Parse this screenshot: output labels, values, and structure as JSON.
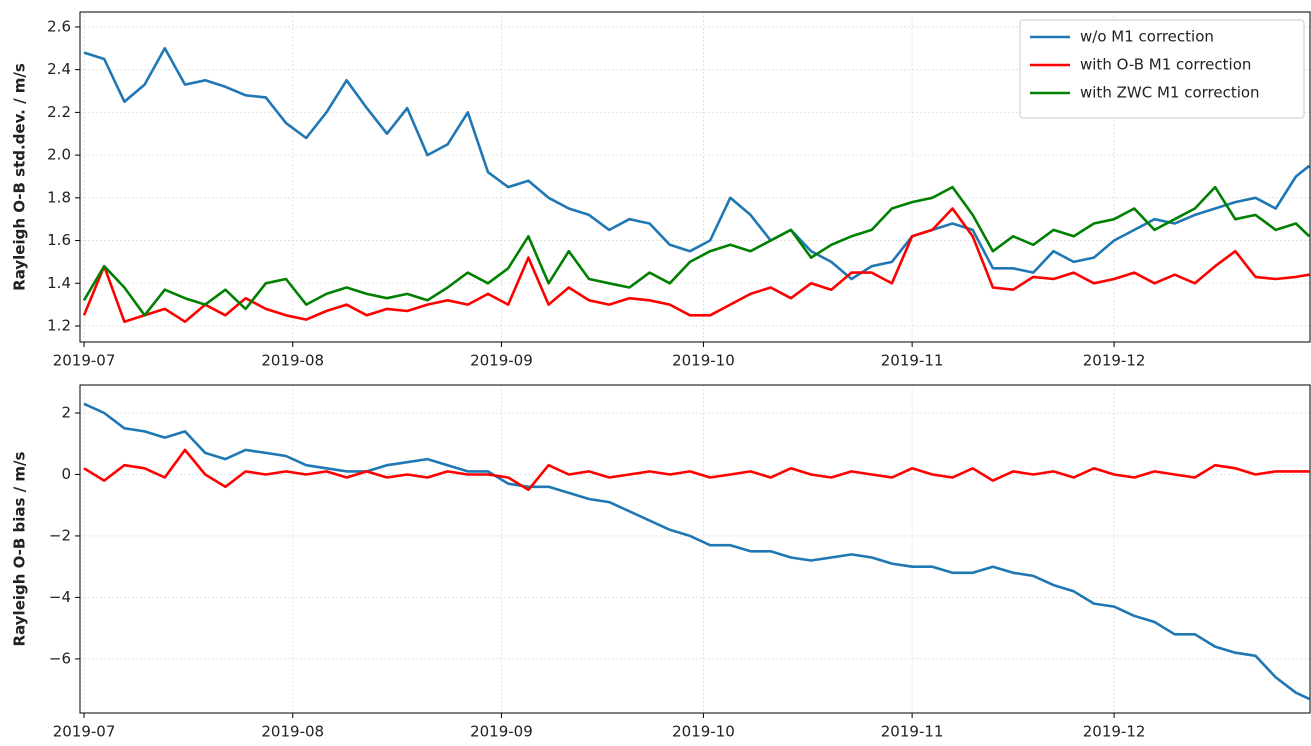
{
  "chart_data": [
    {
      "type": "line",
      "ylabel": "Rayleigh O-B std.dev. / m/s",
      "grid": true,
      "legend": "upper right",
      "x": [
        182,
        185,
        188,
        191,
        194,
        197,
        200,
        203,
        206,
        209,
        212,
        215,
        218,
        221,
        224,
        227,
        230,
        233,
        236,
        239,
        242,
        245,
        248,
        251,
        254,
        257,
        260,
        263,
        266,
        269,
        272,
        275,
        278,
        281,
        284,
        287,
        290,
        293,
        296,
        299,
        302,
        305,
        308,
        311,
        314,
        317,
        320,
        323,
        326,
        329,
        332,
        335,
        338,
        341,
        344,
        347,
        350,
        353,
        356,
        359,
        362,
        364
      ],
      "xlim": [
        181.4,
        364.1
      ],
      "xticks": [
        {
          "value": 182,
          "label": "2019-07"
        },
        {
          "value": 213,
          "label": "2019-08"
        },
        {
          "value": 244,
          "label": "2019-09"
        },
        {
          "value": 274,
          "label": "2019-10"
        },
        {
          "value": 305,
          "label": "2019-11"
        },
        {
          "value": 335,
          "label": "2019-12"
        }
      ],
      "ylim": [
        1.125,
        2.67
      ],
      "yticks": [
        1.2,
        1.4,
        1.6,
        1.8,
        {
          "value": 2,
          "label": "2.0"
        },
        2.2,
        2.4,
        2.6
      ],
      "series": [
        {
          "name": "w/o M1 correction",
          "color": "#1f77b4",
          "values": [
            2.48,
            2.45,
            2.25,
            2.33,
            2.5,
            2.33,
            2.35,
            2.32,
            2.28,
            2.27,
            2.15,
            2.08,
            2.2,
            2.35,
            2.22,
            2.1,
            2.22,
            2.0,
            2.05,
            2.2,
            1.92,
            1.85,
            1.88,
            1.8,
            1.75,
            1.72,
            1.65,
            1.7,
            1.68,
            1.58,
            1.55,
            1.6,
            1.8,
            1.72,
            1.6,
            1.65,
            1.55,
            1.5,
            1.42,
            1.48,
            1.5,
            1.62,
            1.65,
            1.68,
            1.65,
            1.47,
            1.47,
            1.45,
            1.55,
            1.5,
            1.52,
            1.6,
            1.65,
            1.7,
            1.68,
            1.72,
            1.75,
            1.78,
            1.8,
            1.75,
            1.9,
            1.95
          ]
        },
        {
          "name": "with O-B M1 correction",
          "color": "#ff0000",
          "values": [
            1.25,
            1.48,
            1.22,
            1.25,
            1.28,
            1.22,
            1.3,
            1.25,
            1.33,
            1.28,
            1.25,
            1.23,
            1.27,
            1.3,
            1.25,
            1.28,
            1.27,
            1.3,
            1.32,
            1.3,
            1.35,
            1.3,
            1.52,
            1.3,
            1.38,
            1.32,
            1.3,
            1.33,
            1.32,
            1.3,
            1.25,
            1.25,
            1.3,
            1.35,
            1.38,
            1.33,
            1.4,
            1.37,
            1.45,
            1.45,
            1.4,
            1.62,
            1.65,
            1.75,
            1.62,
            1.38,
            1.37,
            1.43,
            1.42,
            1.45,
            1.4,
            1.42,
            1.45,
            1.4,
            1.44,
            1.4,
            1.48,
            1.55,
            1.43,
            1.42,
            1.43,
            1.44
          ]
        },
        {
          "name": "with ZWC M1 correction",
          "color": "#008000",
          "values": [
            1.32,
            1.48,
            1.38,
            1.25,
            1.37,
            1.33,
            1.3,
            1.37,
            1.28,
            1.4,
            1.42,
            1.3,
            1.35,
            1.38,
            1.35,
            1.33,
            1.35,
            1.32,
            1.38,
            1.45,
            1.4,
            1.47,
            1.62,
            1.4,
            1.55,
            1.42,
            1.4,
            1.38,
            1.45,
            1.4,
            1.5,
            1.55,
            1.58,
            1.55,
            1.6,
            1.65,
            1.52,
            1.58,
            1.62,
            1.65,
            1.75,
            1.78,
            1.8,
            1.85,
            1.72,
            1.55,
            1.62,
            1.58,
            1.65,
            1.62,
            1.68,
            1.7,
            1.75,
            1.65,
            1.7,
            1.75,
            1.85,
            1.7,
            1.72,
            1.65,
            1.68,
            1.62
          ]
        }
      ]
    },
    {
      "type": "line",
      "ylabel": "Rayleigh O-B bias / m/s",
      "grid": true,
      "x": [
        182,
        185,
        188,
        191,
        194,
        197,
        200,
        203,
        206,
        209,
        212,
        215,
        218,
        221,
        224,
        227,
        230,
        233,
        236,
        239,
        242,
        245,
        248,
        251,
        254,
        257,
        260,
        263,
        266,
        269,
        272,
        275,
        278,
        281,
        284,
        287,
        290,
        293,
        296,
        299,
        302,
        305,
        308,
        311,
        314,
        317,
        320,
        323,
        326,
        329,
        332,
        335,
        338,
        341,
        344,
        347,
        350,
        353,
        356,
        359,
        362,
        364
      ],
      "xlim": [
        181.4,
        364.1
      ],
      "xticks": [
        {
          "value": 182,
          "label": "2019-07"
        },
        {
          "value": 213,
          "label": "2019-08"
        },
        {
          "value": 244,
          "label": "2019-09"
        },
        {
          "value": 274,
          "label": "2019-10"
        },
        {
          "value": 305,
          "label": "2019-11"
        },
        {
          "value": 335,
          "label": "2019-12"
        }
      ],
      "ylim": [
        -7.76,
        2.91
      ],
      "yticks": [
        {
          "value": -6,
          "label": "−6"
        },
        {
          "value": -4,
          "label": "−4"
        },
        {
          "value": -2,
          "label": "−2"
        },
        0,
        2
      ],
      "series": [
        {
          "color": "#1f77b4",
          "values": [
            2.3,
            2.0,
            1.5,
            1.4,
            1.2,
            1.4,
            0.7,
            0.5,
            0.8,
            0.7,
            0.6,
            0.3,
            0.2,
            0.1,
            0.1,
            0.3,
            0.4,
            0.5,
            0.3,
            0.1,
            0.1,
            -0.3,
            -0.4,
            -0.4,
            -0.6,
            -0.8,
            -0.9,
            -1.2,
            -1.5,
            -1.8,
            -2.0,
            -2.3,
            -2.3,
            -2.5,
            -2.5,
            -2.7,
            -2.8,
            -2.7,
            -2.6,
            -2.7,
            -2.9,
            -3.0,
            -3.0,
            -3.2,
            -3.2,
            -3.0,
            -3.2,
            -3.3,
            -3.6,
            -3.8,
            -4.2,
            -4.3,
            -4.6,
            -4.8,
            -5.2,
            -5.2,
            -5.6,
            -5.8,
            -5.9,
            -6.6,
            -7.1,
            -7.3
          ]
        },
        {
          "color": "#ff0000",
          "values": [
            0.2,
            -0.2,
            0.3,
            0.2,
            -0.1,
            0.8,
            0.0,
            -0.4,
            0.1,
            0.0,
            0.1,
            0.0,
            0.1,
            -0.1,
            0.1,
            -0.1,
            0.0,
            -0.1,
            0.1,
            0.0,
            0.0,
            -0.1,
            -0.5,
            0.3,
            0.0,
            0.1,
            -0.1,
            0.0,
            0.1,
            0.0,
            0.1,
            -0.1,
            0.0,
            0.1,
            -0.1,
            0.2,
            0.0,
            -0.1,
            0.1,
            0.0,
            -0.1,
            0.2,
            0.0,
            -0.1,
            0.2,
            -0.2,
            0.1,
            0.0,
            0.1,
            -0.1,
            0.2,
            0.0,
            -0.1,
            0.1,
            0.0,
            -0.1,
            0.3,
            0.2,
            0.0,
            0.1,
            0.1,
            0.1
          ]
        }
      ]
    }
  ]
}
